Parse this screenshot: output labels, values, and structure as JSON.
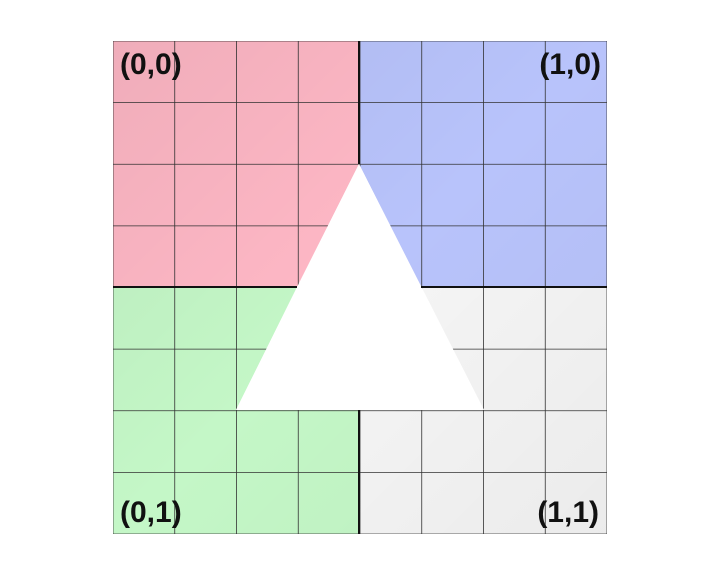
{
  "quadrants": [
    {
      "id": "top-left",
      "label": "(0,0)",
      "color": "#ffb8c6",
      "label_anchor": "start"
    },
    {
      "id": "top-right",
      "label": "(1,0)",
      "color": "#b8c3fb",
      "label_anchor": "end"
    },
    {
      "id": "bottom-left",
      "label": "(0,1)",
      "color": "#c4f7c7",
      "label_anchor": "start"
    },
    {
      "id": "bottom-right",
      "label": "(1,1)",
      "color": "#f5f5f5",
      "label_anchor": "end"
    }
  ],
  "grid": {
    "cells_per_side": 8,
    "line_color": "#333333"
  },
  "center_shape": {
    "type": "triangle",
    "fill": "#ffffff"
  }
}
